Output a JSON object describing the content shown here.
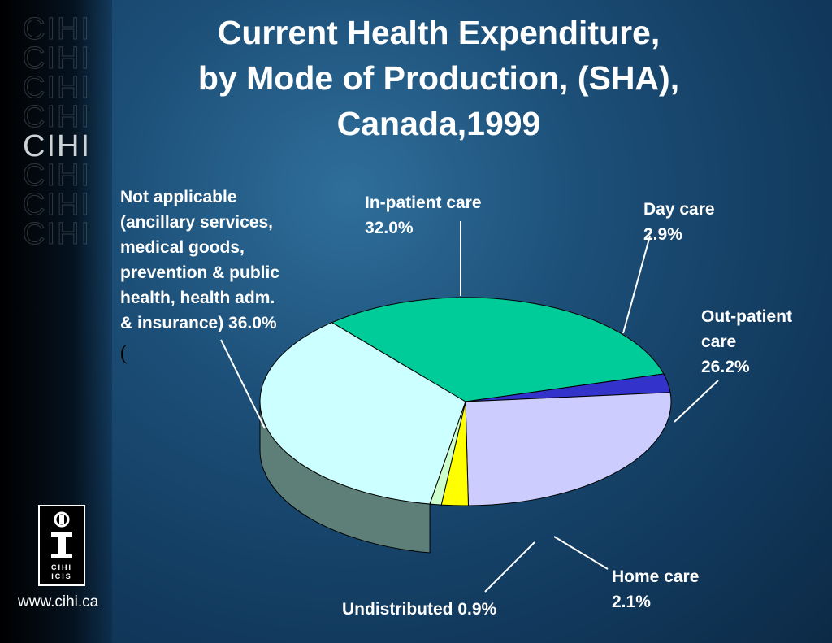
{
  "slide": {
    "title_lines": [
      "Current Health Expenditure,",
      "by Mode of Production, (SHA),",
      "Canada,1999"
    ],
    "url": "www.cihi.ca",
    "brand_word": "CIHI",
    "logo_text_top": "CIHI",
    "logo_text_bottom": "ICIS",
    "stray_char": "("
  },
  "chart_data": {
    "type": "pie",
    "title": "Current Health Expenditure, by Mode of Production, (SHA), Canada,1999",
    "slices": [
      {
        "label_lines": [
          "Not applicable",
          "(ancillary services,",
          "medical goods,",
          "prevention & public",
          "health, health adm.",
          "& insurance) 36.0%"
        ],
        "value": 36.0,
        "top_color": "#ccffff",
        "side_color": "#5e7e78"
      },
      {
        "label_lines": [
          "In-patient care",
          "32.0%"
        ],
        "value": 32.0,
        "top_color": "#00cc99",
        "side_color": "#00805f"
      },
      {
        "label_lines": [
          "Day care",
          "2.9%"
        ],
        "value": 2.9,
        "top_color": "#3333cc",
        "side_color": "#1c1c77"
      },
      {
        "label_lines": [
          "Out-patient",
          "care",
          "26.2%"
        ],
        "value": 26.2,
        "top_color": "#ccccff",
        "side_color": "#6a6a8c"
      },
      {
        "label_lines": [
          "Home care",
          "2.1%"
        ],
        "value": 2.1,
        "top_color": "#ffff00",
        "side_color": "#8c8c00"
      },
      {
        "label_lines": [
          "Undistributed 0.9%"
        ],
        "value": 0.9,
        "top_color": "#ccffcc",
        "side_color": "#6e8a6e"
      }
    ]
  }
}
